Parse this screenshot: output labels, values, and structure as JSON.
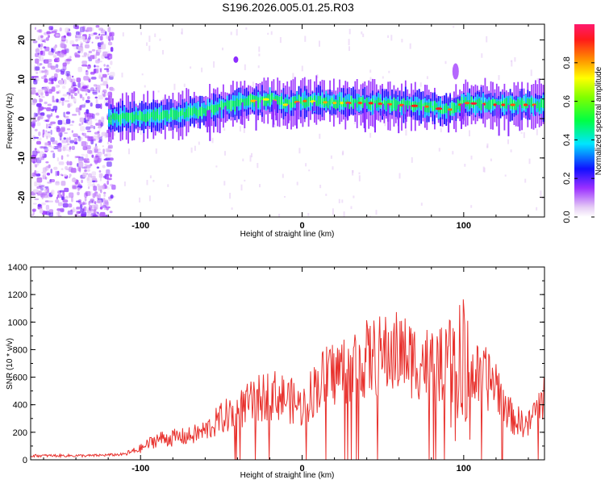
{
  "title": "S196.2026.005.01.25.R03",
  "chart_data": [
    {
      "type": "heatmap",
      "xlabel": "Height of straight line (km)",
      "ylabel": "Frequency (Hz)",
      "xlim": [
        -168,
        150
      ],
      "ylim": [
        -25,
        24
      ],
      "xticks": [
        -100,
        0,
        100
      ],
      "yticks": [
        -20,
        -10,
        0,
        10,
        20
      ],
      "grid": false,
      "colorbar": {
        "label": "Normalized spectral amplitude",
        "range": [
          0,
          1
        ],
        "ticks": [
          0.0,
          0.2,
          0.4,
          0.6,
          0.8
        ]
      },
      "ridge": {
        "description_points_x": [
          -120,
          -100,
          -80,
          -60,
          -40,
          -30,
          -20,
          -10,
          0,
          20,
          40,
          60,
          80,
          90,
          100,
          120,
          150
        ],
        "frequency_hz": [
          0,
          0.5,
          1,
          2,
          4,
          4.5,
          5,
          3.5,
          4.5,
          4,
          4,
          3.5,
          3,
          2,
          4,
          3.5,
          3.5
        ]
      }
    },
    {
      "type": "line",
      "xlabel": "Height of straight line (km)",
      "ylabel": "SNR (10 * v/v)",
      "xlim": [
        -168,
        150
      ],
      "ylim": [
        0,
        1400
      ],
      "xticks": [
        -100,
        0,
        100
      ],
      "yticks": [
        0,
        200,
        400,
        600,
        800,
        1000,
        1200,
        1400
      ],
      "grid": false,
      "series": [
        {
          "name": "SNR",
          "color": "#e8322e",
          "x": [
            -168,
            -150,
            -130,
            -110,
            -100,
            -90,
            -80,
            -70,
            -60,
            -50,
            -40,
            -30,
            -20,
            -10,
            0,
            10,
            20,
            30,
            40,
            50,
            60,
            70,
            80,
            90,
            95,
            100,
            110,
            120,
            130,
            140,
            150
          ],
          "y": [
            30,
            30,
            30,
            40,
            80,
            150,
            160,
            170,
            210,
            300,
            360,
            420,
            480,
            450,
            380,
            560,
            630,
            680,
            730,
            760,
            780,
            720,
            700,
            680,
            1000,
            620,
            600,
            560,
            300,
            250,
            500
          ]
        }
      ]
    }
  ]
}
